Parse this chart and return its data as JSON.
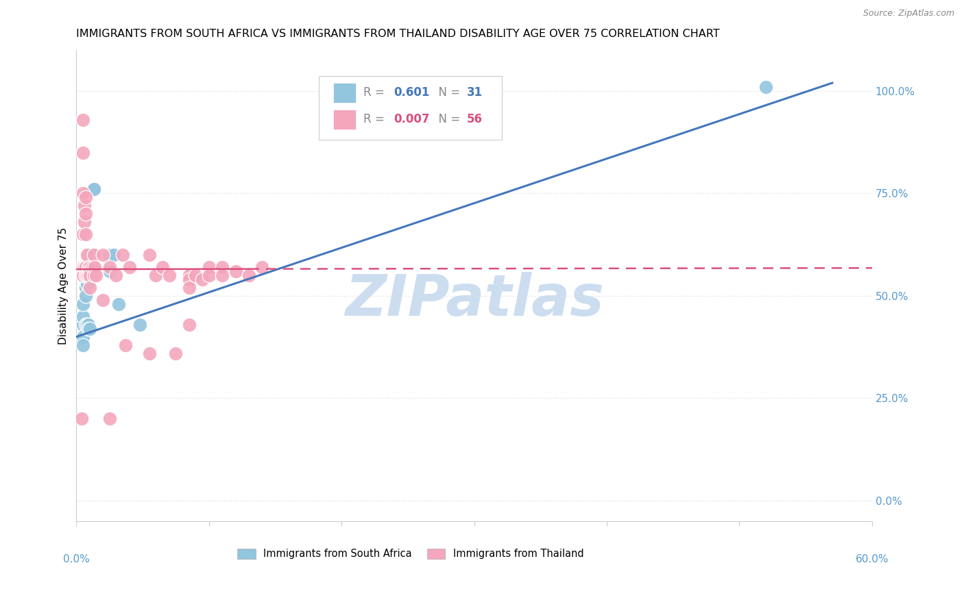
{
  "title": "IMMIGRANTS FROM SOUTH AFRICA VS IMMIGRANTS FROM THAILAND DISABILITY AGE OVER 75 CORRELATION CHART",
  "source": "Source: ZipAtlas.com",
  "ylabel": "Disability Age Over 75",
  "ylabel_right_ticks": [
    "100.0%",
    "75.0%",
    "50.0%",
    "25.0%",
    "0.0%"
  ],
  "ylabel_right_vals": [
    1.0,
    0.75,
    0.5,
    0.25,
    0.0
  ],
  "xlim": [
    0.0,
    0.6
  ],
  "ylim": [
    -0.05,
    1.1
  ],
  "legend_blue_r": "0.601",
  "legend_blue_n": "31",
  "legend_pink_r": "0.007",
  "legend_pink_n": "56",
  "blue_scatter_x": [
    0.005,
    0.005,
    0.005,
    0.005,
    0.005,
    0.005,
    0.007,
    0.007,
    0.007,
    0.007,
    0.007,
    0.008,
    0.008,
    0.008,
    0.009,
    0.009,
    0.009,
    0.009,
    0.01,
    0.01,
    0.01,
    0.012,
    0.012,
    0.013,
    0.013,
    0.025,
    0.025,
    0.028,
    0.032,
    0.048,
    0.52
  ],
  "blue_scatter_y": [
    0.43,
    0.43,
    0.45,
    0.48,
    0.4,
    0.38,
    0.55,
    0.54,
    0.52,
    0.5,
    0.43,
    0.55,
    0.53,
    0.43,
    0.6,
    0.57,
    0.43,
    0.42,
    0.6,
    0.56,
    0.42,
    0.6,
    0.56,
    0.76,
    0.76,
    0.6,
    0.56,
    0.6,
    0.48,
    0.43,
    1.01
  ],
  "pink_scatter_x": [
    0.004,
    0.004,
    0.005,
    0.005,
    0.005,
    0.005,
    0.005,
    0.005,
    0.006,
    0.006,
    0.006,
    0.007,
    0.007,
    0.007,
    0.007,
    0.007,
    0.008,
    0.008,
    0.009,
    0.009,
    0.01,
    0.01,
    0.01,
    0.01,
    0.012,
    0.013,
    0.013,
    0.014,
    0.015,
    0.02,
    0.02,
    0.025,
    0.025,
    0.03,
    0.035,
    0.037,
    0.04,
    0.055,
    0.055,
    0.06,
    0.065,
    0.07,
    0.075,
    0.085,
    0.085,
    0.085,
    0.085,
    0.09,
    0.095,
    0.1,
    0.1,
    0.11,
    0.11,
    0.12,
    0.13,
    0.14
  ],
  "pink_scatter_y": [
    0.57,
    0.2,
    0.93,
    0.85,
    0.75,
    0.65,
    0.57,
    0.55,
    0.72,
    0.68,
    0.57,
    0.74,
    0.7,
    0.65,
    0.57,
    0.55,
    0.6,
    0.55,
    0.57,
    0.55,
    0.57,
    0.56,
    0.55,
    0.52,
    0.57,
    0.6,
    0.55,
    0.57,
    0.55,
    0.6,
    0.49,
    0.57,
    0.2,
    0.55,
    0.6,
    0.38,
    0.57,
    0.6,
    0.36,
    0.55,
    0.57,
    0.55,
    0.36,
    0.55,
    0.54,
    0.52,
    0.43,
    0.55,
    0.54,
    0.57,
    0.55,
    0.57,
    0.55,
    0.56,
    0.55,
    0.57
  ],
  "blue_line_x": [
    0.0,
    0.57
  ],
  "blue_line_y": [
    0.4,
    1.02
  ],
  "pink_line_x": [
    0.0,
    0.6
  ],
  "pink_line_y": [
    0.565,
    0.568
  ],
  "blue_color": "#92c5de",
  "pink_color": "#f4a6bc",
  "blue_line_color": "#4477bb",
  "pink_line_color": "#d94f7f",
  "title_fontsize": 11.5,
  "axis_fontsize": 11,
  "watermark": "ZIPatlas",
  "watermark_color": "#ccddef",
  "watermark_fontsize": 60,
  "grid_color": "#dddddd",
  "grid_linestyle": "dotted"
}
